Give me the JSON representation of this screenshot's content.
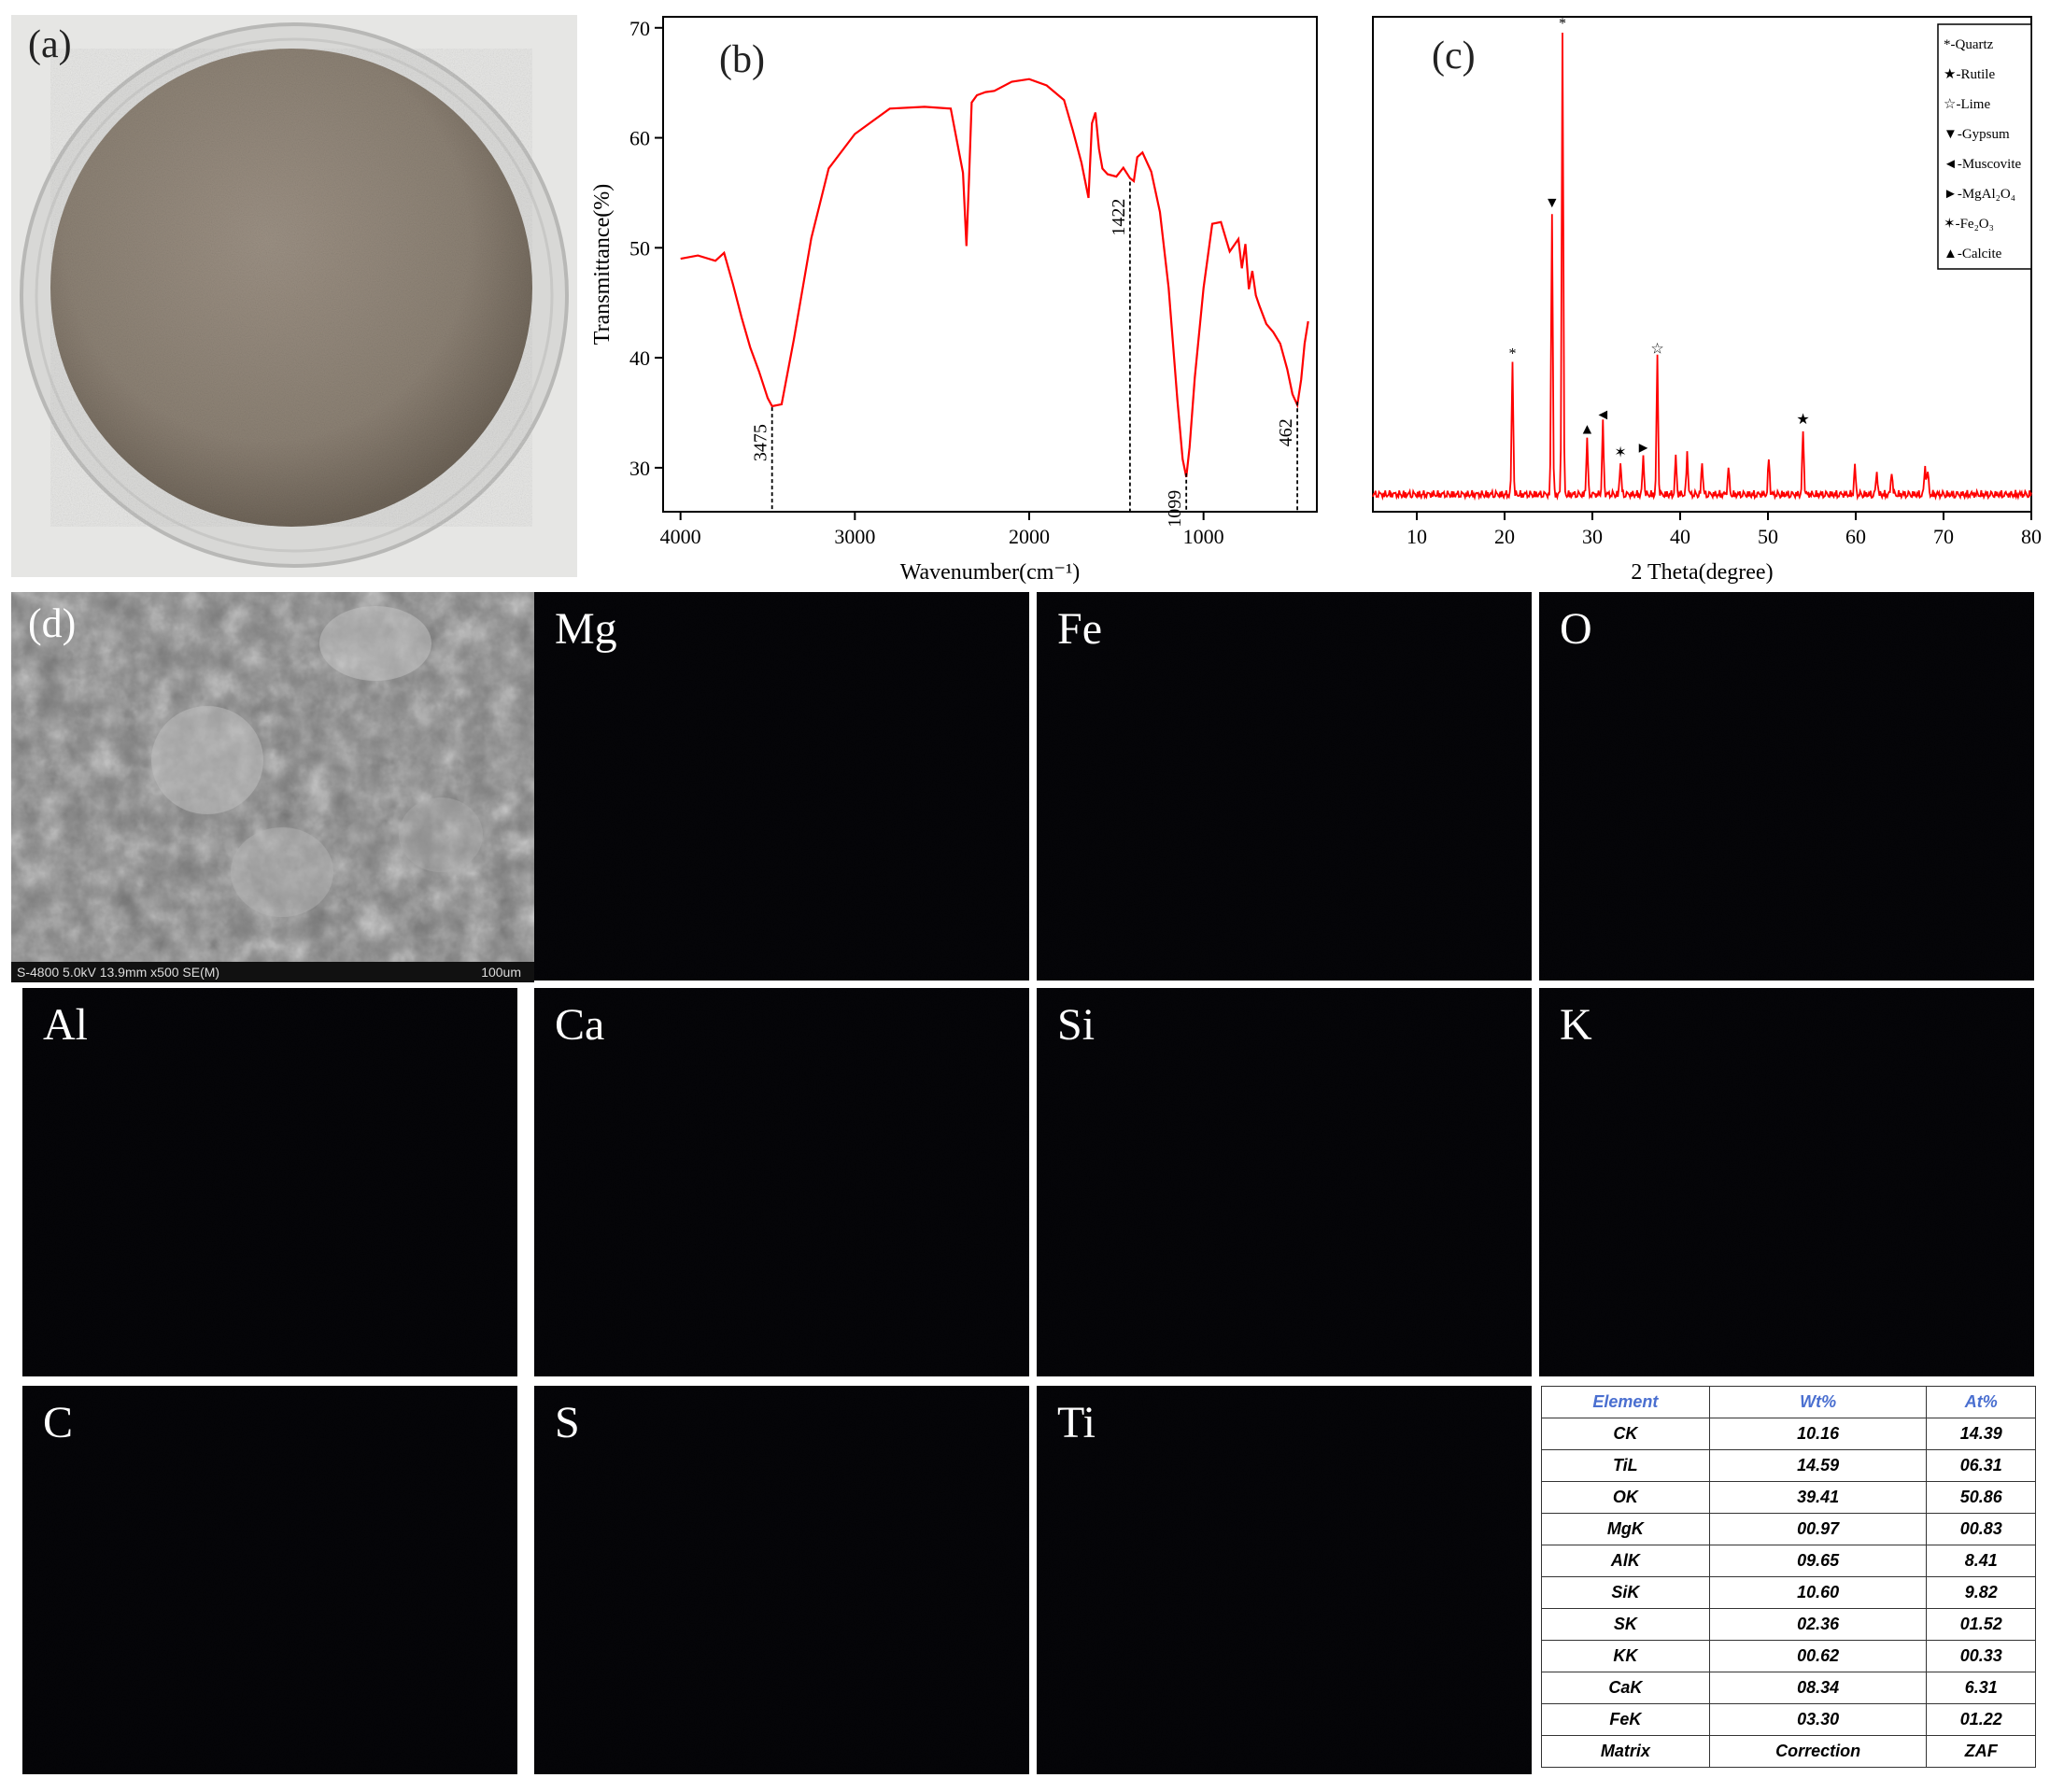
{
  "panels": {
    "a": {
      "label": "(a)"
    },
    "b": {
      "label": "(b)"
    },
    "c": {
      "label": "(c)"
    },
    "d": {
      "label": "(d)",
      "sem_info": "S-4800 5.0kV 13.9mm x500 SE(M)",
      "scale_text": "100um"
    }
  },
  "maps": [
    {
      "label": "Mg",
      "color": "#c8c030"
    },
    {
      "label": "Fe",
      "color": "#c8c030"
    },
    {
      "label": "O",
      "color": "#3a4fb0"
    },
    {
      "label": "Al",
      "color": "#b030c0"
    },
    {
      "label": "Ca",
      "color": "#3a58c0"
    },
    {
      "label": "Si",
      "color": "#30b8c0"
    },
    {
      "label": "K",
      "color": "#30b050"
    },
    {
      "label": "C",
      "color": "#d02828"
    },
    {
      "label": "S",
      "color": "#d02828"
    },
    {
      "label": "Ti",
      "color": "#30a040"
    }
  ],
  "eds_table": {
    "headers": [
      "Element",
      "Wt%",
      "At%"
    ],
    "rows": [
      [
        "CK",
        "10.16",
        "14.39"
      ],
      [
        "TiL",
        "14.59",
        "06.31"
      ],
      [
        "OK",
        "39.41",
        "50.86"
      ],
      [
        "MgK",
        "00.97",
        "00.83"
      ],
      [
        "AlK",
        "09.65",
        "8.41"
      ],
      [
        "SiK",
        "10.60",
        "9.82"
      ],
      [
        "SK",
        "02.36",
        "01.52"
      ],
      [
        "KK",
        "00.62",
        "00.33"
      ],
      [
        "CaK",
        "08.34",
        "6.31"
      ],
      [
        "FeK",
        "03.30",
        "01.22"
      ],
      [
        "Matrix",
        "Correction",
        "ZAF"
      ]
    ]
  },
  "chart_data": [
    {
      "type": "line",
      "panel": "b",
      "xlabel": "Wavenumber(cm⁻¹)",
      "ylabel": "Transmittance(%)",
      "xlim": [
        4100,
        350
      ],
      "ylim": [
        26,
        71
      ],
      "x_reversed": true,
      "xticks": [
        4000,
        3000,
        2000,
        1000
      ],
      "yticks": [
        30,
        40,
        50,
        60,
        70
      ],
      "color": "#ff0000",
      "series": [
        {
          "x": [
            4000,
            3900,
            3800,
            3750,
            3700,
            3650,
            3600,
            3550,
            3500,
            3475,
            3420,
            3350,
            3250,
            3150,
            3000,
            2800,
            2600,
            2450,
            2380,
            2360,
            2345,
            2330,
            2300,
            2250,
            2200,
            2100,
            2000,
            1900,
            1800,
            1750,
            1700,
            1660,
            1640,
            1620,
            1600,
            1580,
            1550,
            1500,
            1460,
            1422,
            1400,
            1380,
            1350,
            1300,
            1250,
            1200,
            1150,
            1120,
            1099,
            1080,
            1050,
            1000,
            950,
            900,
            850,
            800,
            780,
            760,
            740,
            720,
            700,
            680,
            640,
            600,
            560,
            520,
            490,
            462,
            440,
            420,
            400
          ],
          "y": [
            49,
            49,
            48.5,
            49.5,
            47,
            44,
            41,
            38.5,
            36,
            35.5,
            36,
            42,
            51,
            57,
            60,
            62.5,
            63,
            63,
            57,
            50,
            56,
            63,
            64,
            64.5,
            64.5,
            65,
            65,
            64.5,
            63.5,
            61,
            58,
            54.5,
            61,
            62,
            59,
            57.5,
            57,
            56.5,
            57,
            56,
            56,
            58.5,
            59,
            57,
            53,
            46,
            36,
            31,
            29.5,
            32,
            38,
            46,
            52,
            52.5,
            50,
            51,
            48,
            50,
            46,
            48,
            46,
            45,
            43,
            42,
            41,
            39,
            37,
            36,
            38,
            41,
            43
          ]
        }
      ],
      "annotations": [
        {
          "x": 3475,
          "text": "3475"
        },
        {
          "x": 1422,
          "text": "1422"
        },
        {
          "x": 1099,
          "text": "1099"
        },
        {
          "x": 462,
          "text": "462"
        }
      ]
    },
    {
      "type": "line",
      "panel": "c",
      "xlabel": "2 Theta(degree)",
      "xlim": [
        5,
        80
      ],
      "ylim": [
        0,
        105
      ],
      "xticks": [
        10,
        20,
        30,
        40,
        50,
        60,
        70,
        80
      ],
      "color": "#ff0000",
      "baseline": 3,
      "peaks": [
        {
          "x": 20.9,
          "h": 28
        },
        {
          "x": 25.4,
          "h": 60
        },
        {
          "x": 26.6,
          "h": 98
        },
        {
          "x": 29.4,
          "h": 12
        },
        {
          "x": 31.2,
          "h": 15
        },
        {
          "x": 33.2,
          "h": 7
        },
        {
          "x": 35.8,
          "h": 8
        },
        {
          "x": 37.4,
          "h": 29
        },
        {
          "x": 39.5,
          "h": 8
        },
        {
          "x": 40.8,
          "h": 9
        },
        {
          "x": 42.5,
          "h": 7
        },
        {
          "x": 45.5,
          "h": 6
        },
        {
          "x": 50.1,
          "h": 8
        },
        {
          "x": 54.0,
          "h": 14
        },
        {
          "x": 59.9,
          "h": 6
        },
        {
          "x": 62.4,
          "h": 5
        },
        {
          "x": 64.1,
          "h": 5
        },
        {
          "x": 67.9,
          "h": 6
        },
        {
          "x": 68.2,
          "h": 5
        }
      ],
      "markers": [
        {
          "x": 20.9,
          "symbol": "*"
        },
        {
          "x": 25.4,
          "symbol": "▼"
        },
        {
          "x": 26.6,
          "symbol": "*"
        },
        {
          "x": 29.4,
          "symbol": "▲"
        },
        {
          "x": 31.2,
          "symbol": "◄"
        },
        {
          "x": 33.2,
          "symbol": "✶"
        },
        {
          "x": 35.8,
          "symbol": "►"
        },
        {
          "x": 37.4,
          "symbol": "☆"
        },
        {
          "x": 54.0,
          "symbol": "★"
        }
      ],
      "legend": {
        "position": "top-right",
        "entries": [
          {
            "symbol": "*",
            "text": "-Quartz"
          },
          {
            "symbol": "★",
            "text": "-Rutile"
          },
          {
            "symbol": "☆",
            "text": "-Lime"
          },
          {
            "symbol": "▼",
            "text": "-Gypsum"
          },
          {
            "symbol": "◄",
            "text": "-Muscovite"
          },
          {
            "symbol": "►",
            "text": "-MgAl₂O₄"
          },
          {
            "symbol": "✶",
            "text": "-Fe₂O₃"
          },
          {
            "symbol": "▲",
            "text": "-Calcite"
          }
        ]
      }
    }
  ]
}
